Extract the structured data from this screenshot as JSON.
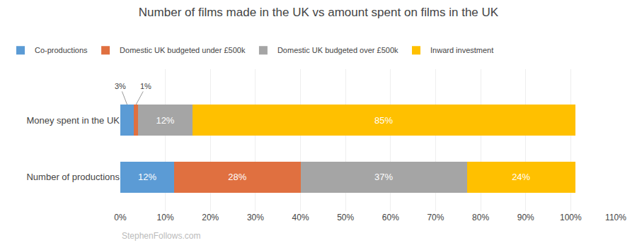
{
  "chart_data": {
    "type": "bar",
    "orientation": "horizontal",
    "stacked": true,
    "title": "Number of films made in the UK vs amount spent on films in the UK",
    "categories": [
      "Money spent in the UK",
      "Number of productions"
    ],
    "series": [
      {
        "name": "Co-productions",
        "color": "#5b9bd5",
        "values": [
          3,
          12
        ],
        "value_labels": [
          "3%",
          "12%"
        ]
      },
      {
        "name": "Domestic UK budgeted under £500k",
        "color": "#e07040",
        "values": [
          1,
          28
        ],
        "value_labels": [
          "1%",
          "28%"
        ]
      },
      {
        "name": "Domestic UK budgeted over £500k",
        "color": "#a5a5a5",
        "values": [
          12,
          37
        ],
        "value_labels": [
          "12%",
          "37%"
        ]
      },
      {
        "name": "Inward investment",
        "color": "#ffc000",
        "values": [
          85,
          24
        ],
        "value_labels": [
          "85%",
          "24%"
        ]
      }
    ],
    "data_labels": true,
    "xlim": [
      0,
      110
    ],
    "xticks": [
      {
        "value": 0,
        "label": "0%"
      },
      {
        "value": 10,
        "label": "10%"
      },
      {
        "value": 20,
        "label": "20%"
      },
      {
        "value": 30,
        "label": "30%"
      },
      {
        "value": 40,
        "label": "40%"
      },
      {
        "value": 50,
        "label": "50%"
      },
      {
        "value": 60,
        "label": "60%"
      },
      {
        "value": 70,
        "label": "70%"
      },
      {
        "value": 80,
        "label": "80%"
      },
      {
        "value": 90,
        "label": "90%"
      },
      {
        "value": 100,
        "label": "100%"
      },
      {
        "value": 110,
        "label": "110%"
      }
    ],
    "grid": true,
    "legend": "upper left",
    "annotations": [
      "StephenFollows.com"
    ]
  }
}
